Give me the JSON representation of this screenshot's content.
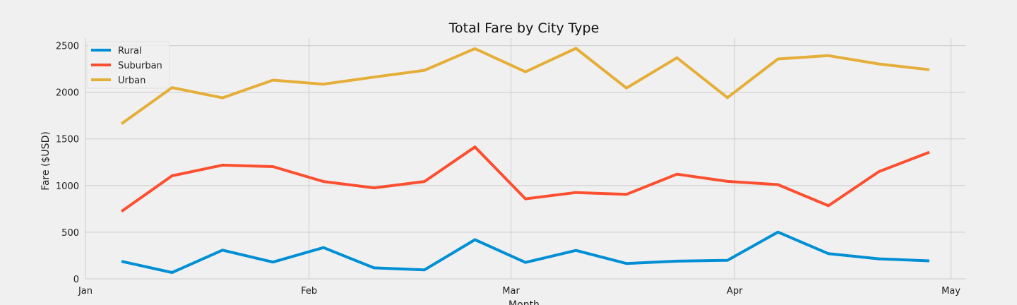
{
  "chart_data": {
    "type": "line",
    "title": "Total Fare by City Type",
    "xlabel": "Month",
    "ylabel": "Fare ($USD)",
    "x": [
      "2019-01-06",
      "2019-01-13",
      "2019-01-20",
      "2019-01-27",
      "2019-02-03",
      "2019-02-10",
      "2019-02-17",
      "2019-02-24",
      "2019-03-03",
      "2019-03-10",
      "2019-03-17",
      "2019-03-24",
      "2019-03-31",
      "2019-04-07",
      "2019-04-14",
      "2019-04-21",
      "2019-04-28"
    ],
    "xlim": [
      "2019-01-01",
      "2019-05-03"
    ],
    "xticks": [
      {
        "date": "2019-01-01",
        "label": "Jan"
      },
      {
        "date": "2019-02-01",
        "label": "Feb"
      },
      {
        "date": "2019-03-01",
        "label": "Mar"
      },
      {
        "date": "2019-04-01",
        "label": "Apr"
      },
      {
        "date": "2019-05-01",
        "label": "May"
      }
    ],
    "ylim": [
      0,
      2580
    ],
    "yticks": [
      0,
      500,
      1000,
      1500,
      2000,
      2500
    ],
    "grid": true,
    "legend_position": "top-left",
    "series": [
      {
        "name": "Rural",
        "color": "#008fd5",
        "values": [
          188,
          68,
          308,
          180,
          335,
          118,
          97,
          420,
          176,
          305,
          165,
          190,
          199,
          502,
          270,
          215,
          193
        ]
      },
      {
        "name": "Suburban",
        "color": "#fc4f30",
        "values": [
          723,
          1105,
          1219,
          1203,
          1043,
          975,
          1043,
          1413,
          858,
          925,
          906,
          1122,
          1045,
          1010,
          784,
          1149,
          1357
        ]
      },
      {
        "name": "Urban",
        "color": "#e5ae38",
        "values": [
          1662,
          2050,
          1940,
          2130,
          2087,
          2162,
          2235,
          2467,
          2219,
          2470,
          2045,
          2370,
          1942,
          2357,
          2392,
          2303,
          2242
        ]
      }
    ]
  }
}
